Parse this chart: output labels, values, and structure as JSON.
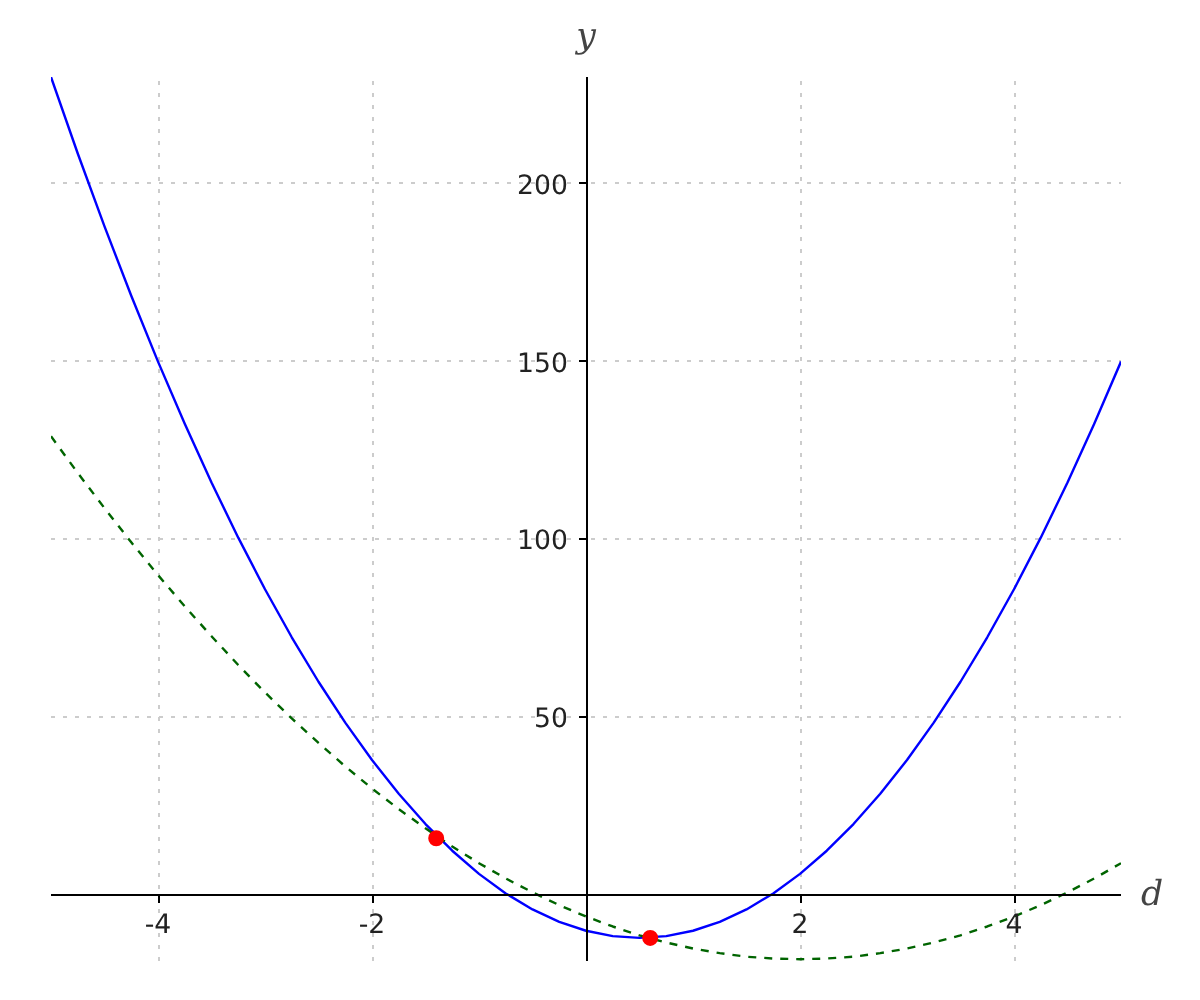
{
  "chart_data": {
    "type": "line",
    "xlabel": "d",
    "ylabel": "y",
    "xlim": [
      -5,
      5
    ],
    "ylim": [
      -18.5,
      230
    ],
    "xticks": [
      -4,
      -2,
      2,
      4
    ],
    "yticks": [
      50,
      100,
      150,
      200
    ],
    "grid": true,
    "series": [
      {
        "color": "#0000ff",
        "line_style": "solid",
        "x": [
          -5,
          -4.75,
          -4.5,
          -4.25,
          -4,
          -3.75,
          -3.5,
          -3.25,
          -3,
          -2.75,
          -2.5,
          -2.25,
          -2,
          -1.75,
          -1.5,
          -1.25,
          -1,
          -0.75,
          -0.5,
          -0.25,
          0,
          0.25,
          0.5,
          0.75,
          1,
          1.25,
          1.5,
          1.75,
          2,
          2.25,
          2.5,
          2.75,
          3,
          3.25,
          3.5,
          3.75,
          4,
          4.25,
          4.5,
          4.75,
          5
        ],
        "values": [
          230,
          208.5,
          188,
          168.5,
          150,
          132.5,
          116,
          100.5,
          86,
          72.5,
          60,
          48.5,
          38,
          28.5,
          20,
          12.5,
          6,
          0.5,
          -4,
          -7.5,
          -10,
          -11.5,
          -12,
          -11.5,
          -10,
          -7.5,
          -4,
          0.5,
          6,
          12.5,
          20,
          28.5,
          38,
          48.5,
          60,
          72.5,
          86,
          100.5,
          116,
          132.5,
          150
        ]
      },
      {
        "color": "#006400",
        "line_style": "dashed",
        "x": [
          -5,
          -4.75,
          -4.5,
          -4.25,
          -4,
          -3.75,
          -3.5,
          -3.25,
          -3,
          -2.75,
          -2.5,
          -2.25,
          -2,
          -1.75,
          -1.5,
          -1.25,
          -1,
          -0.75,
          -0.5,
          -0.25,
          0,
          0.25,
          0.5,
          0.75,
          1,
          1.25,
          1.5,
          1.75,
          2,
          2.25,
          2.5,
          2.75,
          3,
          3.25,
          3.5,
          3.75,
          4,
          4.25,
          4.5,
          4.75,
          5
        ],
        "values": [
          129,
          118.7,
          108.8,
          99.2,
          90,
          81.2,
          72.8,
          64.7,
          57,
          49.7,
          42.8,
          36.2,
          30,
          24.2,
          18.8,
          13.7,
          9,
          4.7,
          0.8,
          -2.8,
          -6,
          -8.8,
          -11.3,
          -13.3,
          -15,
          -16.3,
          -17.3,
          -17.8,
          -18,
          -17.8,
          -17.3,
          -16.3,
          -15,
          -13.3,
          -11.3,
          -8.8,
          -6,
          -2.8,
          0.8,
          4.7,
          9
        ]
      },
      {
        "type": "scatter",
        "marker": "circle",
        "color": "#ff0000",
        "x": [
          -1.4,
          0.6
        ],
        "values": [
          16,
          -12
        ]
      }
    ]
  }
}
